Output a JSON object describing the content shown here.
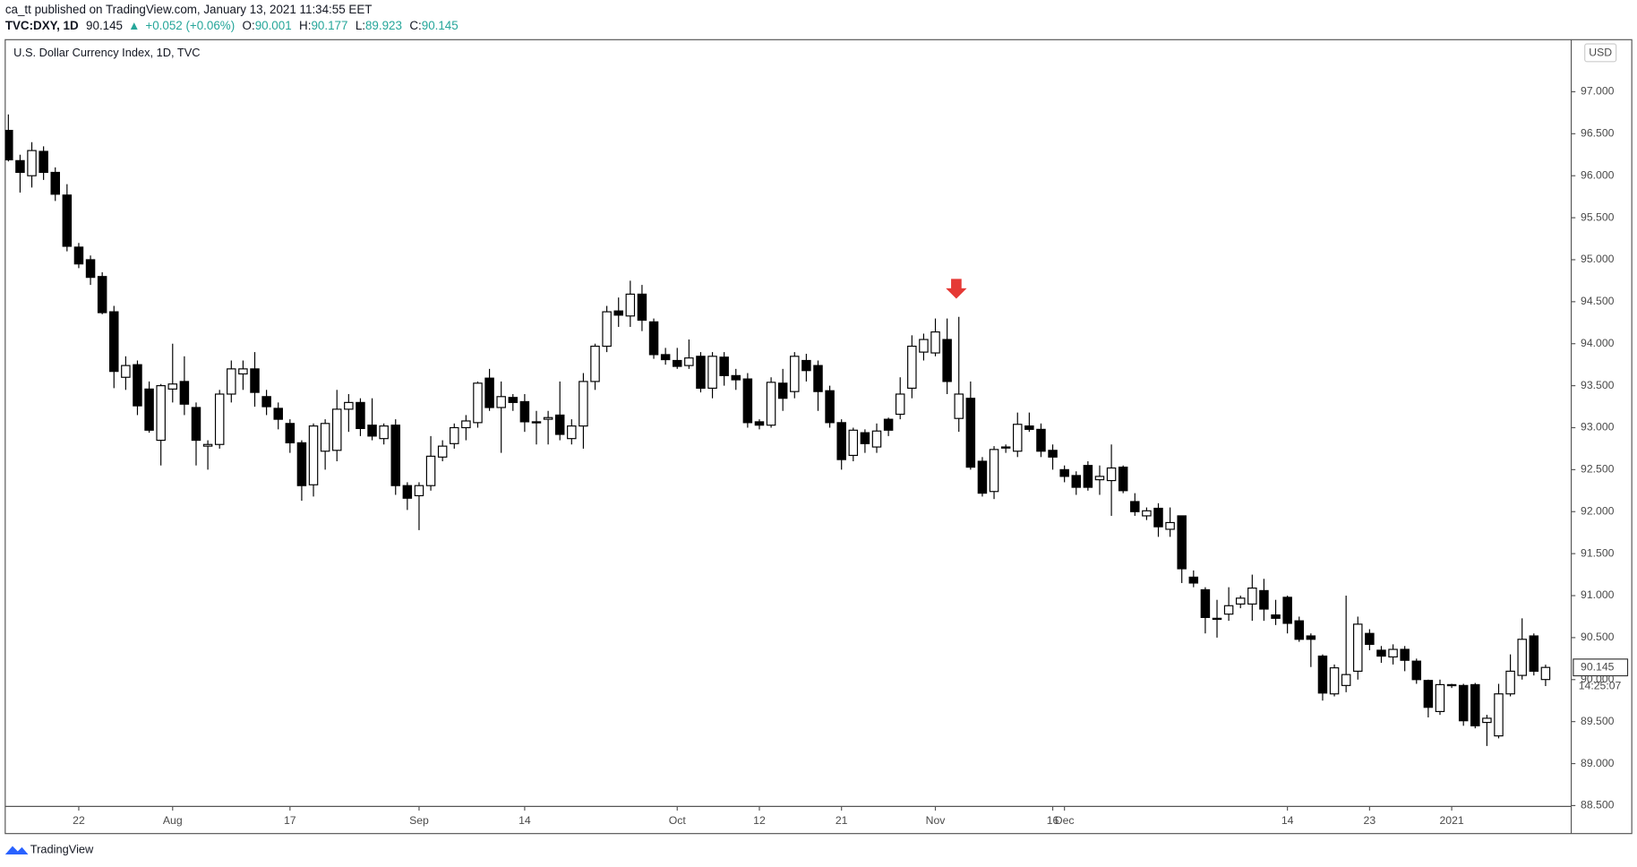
{
  "header": {
    "publisher": "ca_tt published on TradingView.com, January 13, 2021 11:34:55 EET",
    "symbol": "TVC:DXY, 1D",
    "last": 90.145,
    "arrow": "▲",
    "change": "+0.052 (+0.06%)",
    "o_label": "O:",
    "open": 90.001,
    "h_label": "H:",
    "high": 90.177,
    "l_label": "L:",
    "low": 89.923,
    "c_label": "C:",
    "close": 90.145
  },
  "footer": {
    "brand": "TradingView"
  },
  "chart_data": {
    "type": "candlestick",
    "title": "U.S. Dollar Currency Index, 1D, TVC",
    "currency": "USD",
    "last_price": 90.145,
    "countdown": "14:25:07",
    "up_color": "#ffffff",
    "down_color": "#000000",
    "border_color": "#000000",
    "ylim": [
      88.49,
      97.62
    ],
    "yticks": [
      {
        "value": 88.5,
        "label": "88.500"
      },
      {
        "value": 89,
        "label": "89.000"
      },
      {
        "value": 89.5,
        "label": "89.500"
      },
      {
        "value": 90,
        "label": "90.000"
      },
      {
        "value": 90.5,
        "label": "90.500"
      },
      {
        "value": 91,
        "label": "91.000"
      },
      {
        "value": 91.5,
        "label": "91.500"
      },
      {
        "value": 92,
        "label": "92.000"
      },
      {
        "value": 92.5,
        "label": "92.500"
      },
      {
        "value": 93,
        "label": "93.000"
      },
      {
        "value": 93.5,
        "label": "93.500"
      },
      {
        "value": 94,
        "label": "94.000"
      },
      {
        "value": 94.5,
        "label": "94.500"
      },
      {
        "value": 95,
        "label": "95.000"
      },
      {
        "value": 95.5,
        "label": "95.500"
      },
      {
        "value": 96,
        "label": "96.000"
      },
      {
        "value": 96.5,
        "label": "96.500"
      },
      {
        "value": 97,
        "label": "97.000"
      }
    ],
    "categories": [
      null,
      null,
      null,
      null,
      null,
      null,
      "22",
      null,
      null,
      null,
      null,
      null,
      null,
      null,
      "Aug",
      null,
      null,
      null,
      null,
      null,
      null,
      null,
      null,
      null,
      "17",
      null,
      null,
      null,
      null,
      null,
      null,
      null,
      null,
      null,
      null,
      "Sep",
      null,
      null,
      null,
      null,
      null,
      null,
      null,
      null,
      "14",
      null,
      null,
      null,
      null,
      null,
      null,
      null,
      null,
      null,
      null,
      null,
      null,
      "Oct",
      null,
      null,
      null,
      null,
      null,
      null,
      "12",
      null,
      null,
      null,
      null,
      null,
      null,
      "21",
      null,
      null,
      null,
      null,
      null,
      null,
      null,
      "Nov",
      null,
      null,
      null,
      null,
      null,
      null,
      null,
      null,
      null,
      "16",
      "Dec",
      null,
      null,
      null,
      null,
      null,
      null,
      null,
      null,
      null,
      null,
      null,
      null,
      null,
      null,
      null,
      null,
      null,
      null,
      "14",
      null,
      null,
      null,
      null,
      null,
      null,
      "23",
      null,
      null,
      null,
      null,
      null,
      null,
      "2021",
      null,
      null,
      null,
      null,
      null,
      null,
      null,
      null
    ],
    "open": [
      96.54,
      96.18,
      96.0,
      96.29,
      96.04,
      95.77,
      95.15,
      95.0,
      94.8,
      94.38,
      93.6,
      93.75,
      93.46,
      92.85,
      93.46,
      93.55,
      93.24,
      92.78,
      92.8,
      93.4,
      93.64,
      93.7,
      93.37,
      93.23,
      93.05,
      92.82,
      92.32,
      92.72,
      92.73,
      93.22,
      93.3,
      93.03,
      92.87,
      93.03,
      92.31,
      92.19,
      92.31,
      92.65,
      92.81,
      93.0,
      93.06,
      93.59,
      93.24,
      93.36,
      93.31,
      93.07,
      93.1,
      93.15,
      92.87,
      93.02,
      93.55,
      93.97,
      94.39,
      94.33,
      94.59,
      94.26,
      93.87,
      93.8,
      93.74,
      93.85,
      93.47,
      93.84,
      93.62,
      93.58,
      93.07,
      93.03,
      93.53,
      93.43,
      93.8,
      93.74,
      93.44,
      93.06,
      92.67,
      92.94,
      92.77,
      93.1,
      93.16,
      93.47,
      93.9,
      93.89,
      94.05,
      93.11,
      93.35,
      92.6,
      92.24,
      92.76,
      92.72,
      93.02,
      92.98,
      92.73,
      92.5,
      92.43,
      92.55,
      92.38,
      92.37,
      92.53,
      92.12,
      91.95,
      92.04,
      91.79,
      91.95,
      91.22,
      91.07,
      90.73,
      90.78,
      90.9,
      90.9,
      91.06,
      90.77,
      90.98,
      90.7,
      90.52,
      90.28,
      89.83,
      89.93,
      90.1,
      90.55,
      90.35,
      90.27,
      90.36,
      90.22,
      89.99,
      89.62,
      89.94,
      89.93,
      89.94,
      89.49,
      89.33,
      89.83,
      90.05,
      90.52,
      90.001
    ],
    "high": [
      96.73,
      96.25,
      96.4,
      96.35,
      96.1,
      95.9,
      95.2,
      95.05,
      94.85,
      94.45,
      93.85,
      93.8,
      93.55,
      93.52,
      94.0,
      93.85,
      93.3,
      92.85,
      93.45,
      93.8,
      93.8,
      93.9,
      93.45,
      93.3,
      93.1,
      92.85,
      93.05,
      93.1,
      93.45,
      93.4,
      93.35,
      93.35,
      93.05,
      93.1,
      92.35,
      92.35,
      92.9,
      92.85,
      93.05,
      93.15,
      93.55,
      93.7,
      93.55,
      93.4,
      93.4,
      93.2,
      93.2,
      93.55,
      93.1,
      93.65,
      94.0,
      94.45,
      94.55,
      94.75,
      94.7,
      94.3,
      93.95,
      93.95,
      94.05,
      93.9,
      93.9,
      93.9,
      93.7,
      93.65,
      93.1,
      93.6,
      93.7,
      93.9,
      93.88,
      93.8,
      93.5,
      93.1,
      93.0,
      92.98,
      93.05,
      93.12,
      93.6,
      94.1,
      94.12,
      94.3,
      94.3,
      94.32,
      93.55,
      92.65,
      92.78,
      92.8,
      93.18,
      93.18,
      93.05,
      92.8,
      92.55,
      92.48,
      92.6,
      92.55,
      92.8,
      92.55,
      92.22,
      92.05,
      92.1,
      92.05,
      91.95,
      91.3,
      91.1,
      90.95,
      91.1,
      91.0,
      91.25,
      91.2,
      90.95,
      91.0,
      90.75,
      90.55,
      90.3,
      90.18,
      91.0,
      90.75,
      90.6,
      90.4,
      90.42,
      90.4,
      90.25,
      90.0,
      90.0,
      89.95,
      89.95,
      89.96,
      89.58,
      89.95,
      90.3,
      90.73,
      90.55,
      90.177
    ],
    "low": [
      96.17,
      95.8,
      95.86,
      95.95,
      95.7,
      95.1,
      94.9,
      94.7,
      94.35,
      93.47,
      93.45,
      93.15,
      92.94,
      92.55,
      93.3,
      93.15,
      92.55,
      92.5,
      92.75,
      93.3,
      93.45,
      93.25,
      93.15,
      92.98,
      92.7,
      92.13,
      92.18,
      92.5,
      92.6,
      92.95,
      92.9,
      92.85,
      92.8,
      92.2,
      92.02,
      91.78,
      92.25,
      92.6,
      92.75,
      92.85,
      93.0,
      93.2,
      92.7,
      93.2,
      92.95,
      92.8,
      92.8,
      92.85,
      92.8,
      92.75,
      93.45,
      93.9,
      94.2,
      94.2,
      94.15,
      93.82,
      93.75,
      93.7,
      93.7,
      93.42,
      93.35,
      93.5,
      93.45,
      93.0,
      92.98,
      93.0,
      93.2,
      93.35,
      93.55,
      93.2,
      93.0,
      92.5,
      92.6,
      92.7,
      92.7,
      92.9,
      93.1,
      93.35,
      93.8,
      93.85,
      93.4,
      92.95,
      92.5,
      92.18,
      92.15,
      92.7,
      92.65,
      92.95,
      92.65,
      92.5,
      92.35,
      92.2,
      92.25,
      92.2,
      91.95,
      92.22,
      91.95,
      91.9,
      91.7,
      91.7,
      91.15,
      91.1,
      90.55,
      90.5,
      90.7,
      90.85,
      90.7,
      90.7,
      90.65,
      90.55,
      90.45,
      90.15,
      89.75,
      89.8,
      89.85,
      90.0,
      90.35,
      90.2,
      90.18,
      90.1,
      89.95,
      89.55,
      89.58,
      89.9,
      89.45,
      89.42,
      89.21,
      89.3,
      89.8,
      90.0,
      90.05,
      89.923
    ],
    "close": [
      96.19,
      96.04,
      96.3,
      96.04,
      95.78,
      95.16,
      94.95,
      94.79,
      94.37,
      93.67,
      93.74,
      93.26,
      92.97,
      93.5,
      93.52,
      93.28,
      92.85,
      92.8,
      93.4,
      93.7,
      93.7,
      93.42,
      93.25,
      93.1,
      92.82,
      92.31,
      93.02,
      93.05,
      93.22,
      93.3,
      92.99,
      92.9,
      93.02,
      92.31,
      92.16,
      92.31,
      92.66,
      92.78,
      93.0,
      93.08,
      93.53,
      93.24,
      93.37,
      93.3,
      93.07,
      93.06,
      93.12,
      92.92,
      93.02,
      93.55,
      93.97,
      94.38,
      94.34,
      94.59,
      94.28,
      93.87,
      93.81,
      93.73,
      93.83,
      93.47,
      93.85,
      93.62,
      93.57,
      93.06,
      93.03,
      93.54,
      93.35,
      93.85,
      93.68,
      93.43,
      93.06,
      92.62,
      92.97,
      92.81,
      92.96,
      92.97,
      93.4,
      93.97,
      94.05,
      94.14,
      93.55,
      93.4,
      92.53,
      92.22,
      92.74,
      92.77,
      93.04,
      92.98,
      92.72,
      92.65,
      92.42,
      92.29,
      92.29,
      92.42,
      92.52,
      92.25,
      92.0,
      92.01,
      91.82,
      91.87,
      91.32,
      91.15,
      90.74,
      90.73,
      90.88,
      90.97,
      91.09,
      90.84,
      90.73,
      90.67,
      90.48,
      90.48,
      89.84,
      90.14,
      90.06,
      90.66,
      90.42,
      90.28,
      90.36,
      90.23,
      90.0,
      89.67,
      89.94,
      89.93,
      89.51,
      89.45,
      89.54,
      89.83,
      90.1,
      90.48,
      90.1,
      90.145
    ]
  }
}
